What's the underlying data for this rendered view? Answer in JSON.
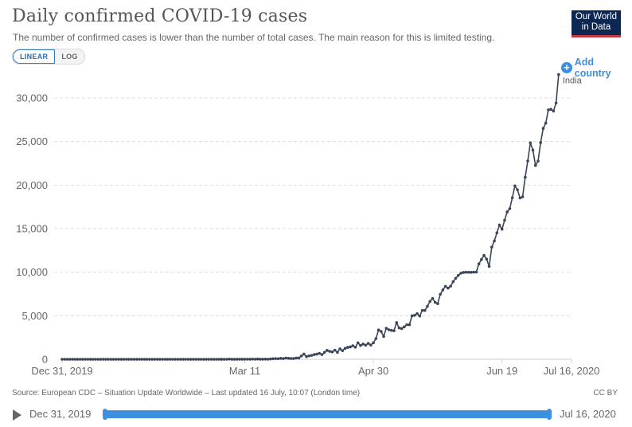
{
  "header": {
    "title": "Daily confirmed COVID-19 cases",
    "subtitle": "The number of confirmed cases is lower than the number of total cases. The main reason for this is limited testing.",
    "scale_options": [
      "LINEAR",
      "LOG"
    ],
    "selected_scale": "LINEAR",
    "logo_line1": "Our World",
    "logo_line2": "in Data",
    "add_country_label": "Add country"
  },
  "footer": {
    "source": "Source: European CDC – Situation Update Worldwide – Last updated 16 July, 10:07 (London time)",
    "license": "CC BY"
  },
  "timeline": {
    "start_label": "Dec 31, 2019",
    "end_label": "Jul 16, 2020",
    "range_start_fraction": 0,
    "range_end_fraction": 1
  },
  "colors": {
    "line": "#3a4558",
    "accent": "#3d8fe0",
    "logo_bg": "#0c2752",
    "logo_bar": "#c8333d"
  },
  "chart_data": {
    "type": "line",
    "title": "Daily confirmed COVID-19 cases",
    "xlabel": "",
    "ylabel": "",
    "x_start": "2019-12-31",
    "x_end": "2020-07-16",
    "x_unit": "day index from Dec 31, 2019",
    "xlim": [
      0,
      198
    ],
    "ylim": [
      0,
      30000
    ],
    "x_ticks": [
      {
        "day": 0,
        "label": "Dec 31, 2019"
      },
      {
        "day": 71,
        "label": "Mar 11"
      },
      {
        "day": 121,
        "label": "Apr 30"
      },
      {
        "day": 171,
        "label": "Jun 19"
      },
      {
        "day": 198,
        "label": "Jul 16, 2020"
      }
    ],
    "y_ticks": [
      {
        "value": 0,
        "label": "0"
      },
      {
        "value": 5000,
        "label": "5,000"
      },
      {
        "value": 10000,
        "label": "10,000"
      },
      {
        "value": 15000,
        "label": "15,000"
      },
      {
        "value": 20000,
        "label": "20,000"
      },
      {
        "value": 25000,
        "label": "25,000"
      },
      {
        "value": 30000,
        "label": "30,000"
      }
    ],
    "grid": "horizontal-dashed",
    "legend": "right-end-label",
    "series": [
      {
        "name": "India",
        "values": [
          0,
          0,
          0,
          0,
          0,
          0,
          0,
          0,
          0,
          0,
          0,
          0,
          0,
          0,
          0,
          0,
          0,
          0,
          0,
          0,
          0,
          0,
          0,
          0,
          0,
          0,
          0,
          0,
          0,
          0,
          0,
          1,
          0,
          1,
          1,
          0,
          0,
          0,
          0,
          0,
          0,
          0,
          0,
          0,
          0,
          0,
          0,
          0,
          0,
          0,
          0,
          0,
          0,
          0,
          0,
          0,
          0,
          0,
          0,
          0,
          0,
          0,
          2,
          1,
          0,
          22,
          2,
          1,
          3,
          5,
          6,
          12,
          11,
          9,
          20,
          11,
          25,
          14,
          9,
          22,
          12,
          40,
          64,
          75,
          63,
          105,
          81,
          145,
          111,
          91,
          87,
          144,
          147,
          379,
          601,
          307,
          396,
          446,
          543,
          594,
          684,
          540,
          796,
          1019,
          910,
          847,
          1047,
          802,
          1195,
          989,
          1256,
          1362,
          1420,
          1554,
          1390,
          1895,
          1587,
          1752,
          1621,
          1824,
          1635,
          1897,
          2378,
          3364,
          3200,
          2618,
          3561,
          3390,
          3320,
          3277,
          4213,
          3604,
          3524,
          3722,
          3967,
          3970,
          4987,
          5050,
          5242,
          4970,
          5611,
          5609,
          6088,
          6654,
          6977,
          6535,
          6387,
          7466,
          7964,
          8380,
          8171,
          8392,
          8909,
          9304,
          9633,
          9889,
          9971,
          9996,
          9987,
          9985,
          10000,
          10012,
          10954,
          11458,
          11929,
          11502,
          10667,
          12881,
          13586,
          14516,
          15413,
          14933,
          15968,
          16922,
          17296,
          18552,
          19906,
          19459,
          18522,
          18653,
          20903,
          22771,
          24850,
          24015,
          22252,
          22752,
          24879,
          26506,
          27114,
          28637,
          28701,
          28498,
          29429,
          32695
        ]
      }
    ]
  }
}
